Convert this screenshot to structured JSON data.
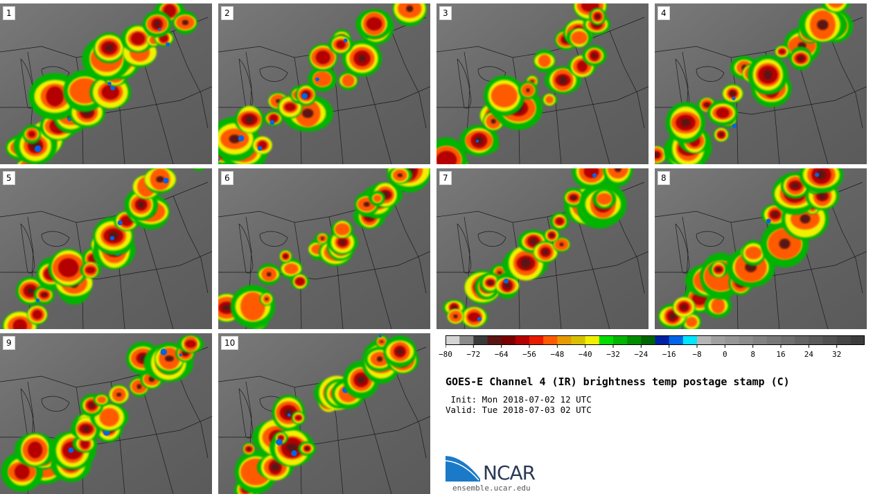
{
  "figure": {
    "title": "GOES-E Channel 4 (IR) brightness temp postage stamp (C)",
    "init_text": " Init: Mon 2018-07-02 12 UTC",
    "valid_text": "Valid: Tue 2018-07-03 02 UTC",
    "footer_site": "ensemble.ucar.edu",
    "logo_text": "NCAR"
  },
  "panels": [
    "1",
    "2",
    "3",
    "4",
    "5",
    "6",
    "7",
    "8",
    "9",
    "10"
  ],
  "colorbar": {
    "min": -80,
    "max": 36,
    "step": 4,
    "tick_labels": [
      "−80",
      "−72",
      "−64",
      "−56",
      "−48",
      "−40",
      "−32",
      "−24",
      "−16",
      "−8",
      "0",
      "8",
      "16",
      "24",
      "32"
    ],
    "tick_values": [
      -80,
      -72,
      -64,
      -56,
      -48,
      -40,
      -32,
      -24,
      -16,
      -8,
      0,
      8,
      16,
      24,
      32
    ],
    "colors": [
      "#d4d4d4",
      "#8a8a8a",
      "#3a3a3a",
      "#5a1414",
      "#7a0000",
      "#b40000",
      "#e81a00",
      "#ff5a00",
      "#e69a00",
      "#d8c000",
      "#f0f000",
      "#00dc00",
      "#00b400",
      "#008c00",
      "#006400",
      "#0020a0",
      "#0064e6",
      "#00e6ff",
      "#b4b4b4",
      "#a0a0a0",
      "#969696",
      "#8c8c8c",
      "#828282",
      "#787878",
      "#6e6e6e",
      "#646464",
      "#5a5a5a",
      "#505050",
      "#464646",
      "#3c3c3c"
    ]
  }
}
